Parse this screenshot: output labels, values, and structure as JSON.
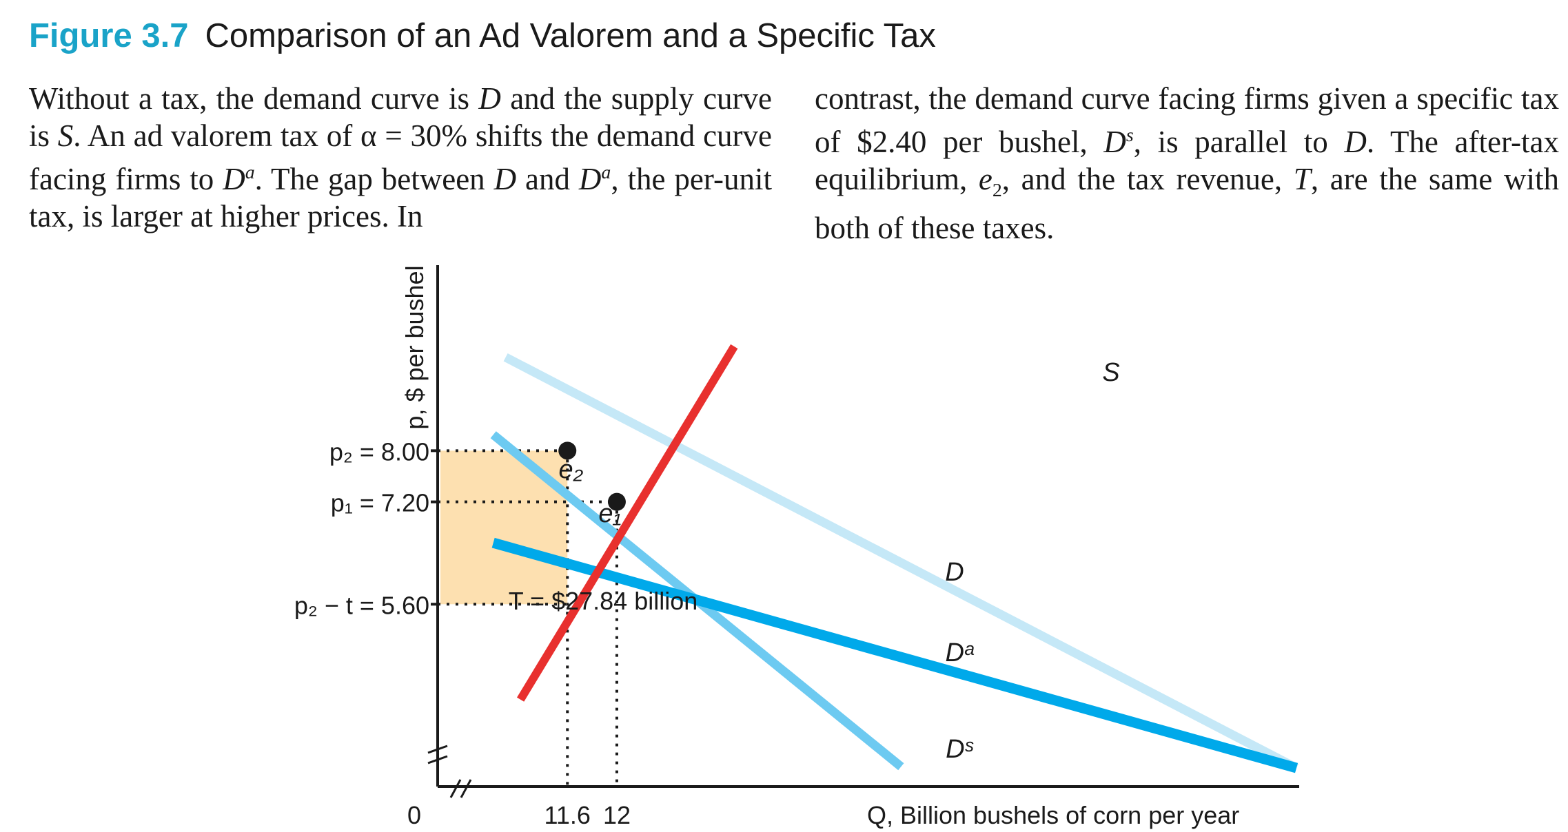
{
  "figure": {
    "number": "Figure 3.7",
    "title": "Comparison of an Ad Valorem and a Specific Tax"
  },
  "description": {
    "left_html": "Without a tax, the demand curve is <i>D</i> and the supply curve is <i>S</i>. An ad valorem tax of α = 30% shifts the demand curve facing firms to <i>D</i><sup style=\"font-size:0.62em\"><i>a</i></sup>. The gap between <i>D</i> and <i>D</i><sup style=\"font-size:0.62em\"><i>a</i></sup>, the per-unit tax, is larger at higher prices. In",
    "right_html": "contrast, the demand curve facing firms given a specific tax of $2.40 per bushel, <i>D</i><sup style=\"font-size:0.62em\"><i>s</i></sup>, is parallel to <i>D</i>. The after-tax equilibrium, <i>e</i><sub style=\"font-size:0.62em\">2</sub>, and the tax revenue, <i>T</i>, are the same with both of these taxes."
  },
  "colors": {
    "supply": "#e8302e",
    "demand": "#c5e8f7",
    "demand_ad_valorem": "#00a9ea",
    "demand_specific": "#6dcaf1",
    "tax_area": "#fde0b0",
    "accent": "#1aa3c8"
  },
  "chart_data": {
    "type": "line",
    "xlabel": "Q, Billion bushels of corn per year",
    "ylabel": "p, $ per bushel",
    "origin_label": "0",
    "xlim": [
      10.55,
      17.55
    ],
    "ylim": [
      2.75,
      10.9
    ],
    "x_ticks": [
      {
        "value": 11.6,
        "label": "11.6"
      },
      {
        "value": 12.0,
        "label": "12"
      }
    ],
    "y_ticks": [
      {
        "value": 8.0,
        "label": "p₂ = 8.00"
      },
      {
        "value": 7.2,
        "label": "p₁ = 7.20"
      },
      {
        "value": 5.6,
        "label": "p₂ − t = 5.60"
      }
    ],
    "series": [
      {
        "name": "S",
        "label": "S",
        "points": [
          [
            11.22,
            4.11
          ],
          [
            12.95,
            9.63
          ]
        ]
      },
      {
        "name": "D",
        "label": "D",
        "points": [
          [
            11.1,
            9.46
          ],
          [
            17.5,
            3.04
          ]
        ]
      },
      {
        "name": "Da",
        "label": "Dᵃ",
        "points": [
          [
            11.0,
            6.56
          ],
          [
            17.5,
            3.04
          ]
        ]
      },
      {
        "name": "Ds",
        "label": "Dˢ",
        "points": [
          [
            11.0,
            8.25
          ],
          [
            14.3,
            3.06
          ]
        ]
      }
    ],
    "equilibria": [
      {
        "name": "e1",
        "label": "e₁",
        "q": 12.0,
        "p": 7.2
      },
      {
        "name": "e2",
        "label": "e₂",
        "q": 11.6,
        "p": 8.0
      }
    ],
    "tax_revenue": {
      "label": "T = $27.84 billion",
      "q": 11.6,
      "p_high": 8.0,
      "p_low": 5.6
    }
  }
}
